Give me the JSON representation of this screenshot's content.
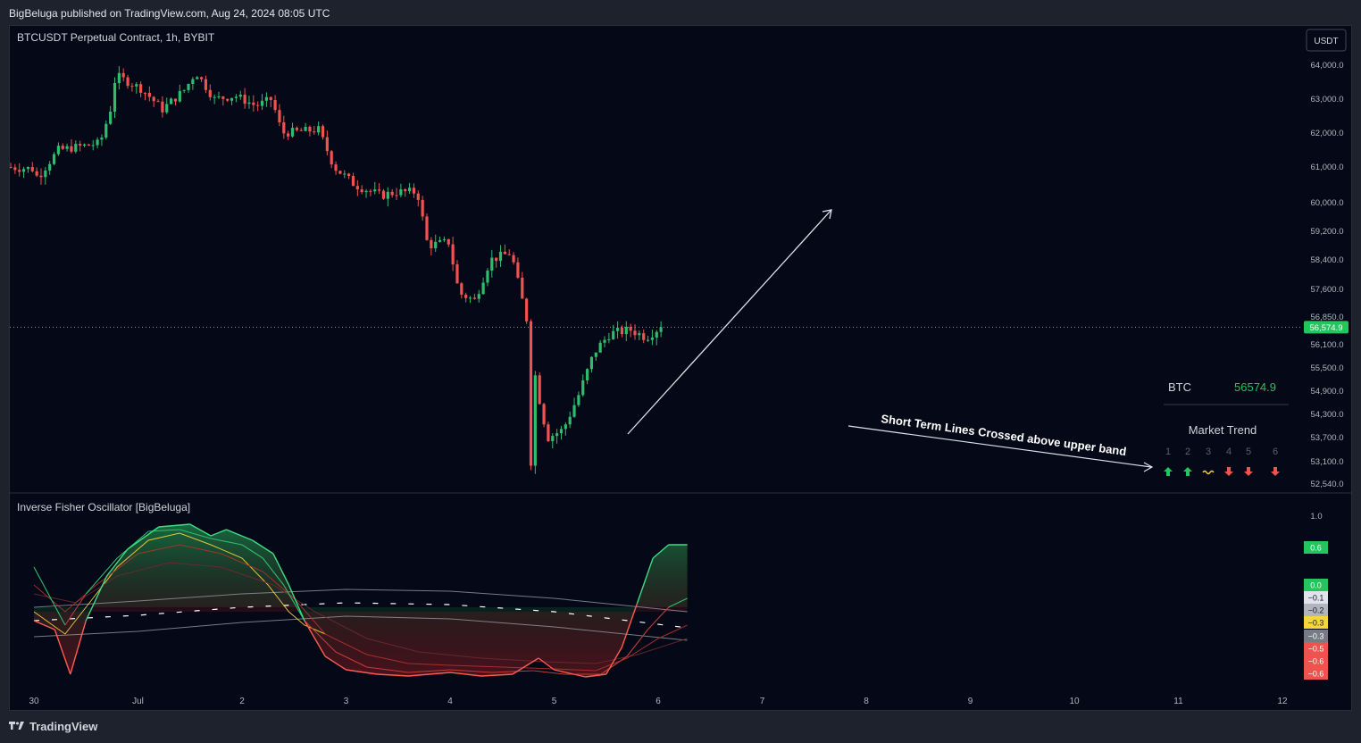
{
  "header": {
    "published_by": "BigBeluga published on TradingView.com, Aug 24, 2024 08:05 UTC"
  },
  "price_pane": {
    "title": "BTCUSDT Perpetual Contract, 1h, BYBIT",
    "currency_button": "USDT",
    "last_price_label": "56,574.9",
    "annotation_text": "Short Term Lines Crossed above upper band"
  },
  "oscillator_pane": {
    "title": "Inverse Fisher Oscillator [BigBeluga]"
  },
  "info_table": {
    "symbol": "BTC",
    "price": "56574.9",
    "market_trend_title": "Market Trend",
    "columns": [
      {
        "num": "1",
        "signal": "up"
      },
      {
        "num": "2",
        "signal": "up"
      },
      {
        "num": "3",
        "signal": "neutral"
      },
      {
        "num": "4",
        "signal": "down"
      },
      {
        "num": "5",
        "signal": "down"
      },
      {
        "num": "6",
        "signal": "down"
      }
    ]
  },
  "footer": {
    "brand": "TradingView"
  },
  "colors": {
    "bull": "#26a69a",
    "bull_bright": "#2ebd6e",
    "bear": "#ef5350",
    "green_line": "#3ddc84",
    "red_line": "#ff5a52",
    "yellow": "#f5d442",
    "badge_green": "#22c55e",
    "background": "#050816"
  },
  "chart_data": [
    {
      "type": "candlestick",
      "title": "BTCUSDT Perpetual Contract, 1h, BYBIT",
      "y_ticks": [
        "64,000.0",
        "63,000.0",
        "62,000.0",
        "61,000.0",
        "60,000.0",
        "59,200.0",
        "58,400.0",
        "57,600.0",
        "56,850.0",
        "56,100.0",
        "55,500.0",
        "54,900.0",
        "54,300.0",
        "53,700.0",
        "53,100.0",
        "52,540.0"
      ],
      "x_ticks": [
        "30",
        "Jul",
        "2",
        "3",
        "4",
        "5",
        "6",
        "7",
        "8",
        "9",
        "10",
        "11",
        "12"
      ],
      "ylim": [
        52540,
        64000
      ],
      "last_price": 56574.9,
      "close_path": [
        {
          "day": 0.0,
          "close": 61000
        },
        {
          "day": 0.25,
          "close": 60950
        },
        {
          "day": 0.3,
          "close": 60700
        },
        {
          "day": 0.5,
          "close": 61500
        },
        {
          "day": 0.9,
          "close": 61700
        },
        {
          "day": 1.0,
          "close": 62700
        },
        {
          "day": 1.05,
          "close": 63700
        },
        {
          "day": 1.3,
          "close": 63300
        },
        {
          "day": 1.5,
          "close": 62700
        },
        {
          "day": 1.72,
          "close": 63300
        },
        {
          "day": 1.82,
          "close": 63800
        },
        {
          "day": 2.0,
          "close": 63000
        },
        {
          "day": 2.2,
          "close": 63100
        },
        {
          "day": 2.4,
          "close": 62800
        },
        {
          "day": 2.55,
          "close": 63000
        },
        {
          "day": 2.65,
          "close": 62000
        },
        {
          "day": 3.0,
          "close": 62100
        },
        {
          "day": 3.15,
          "close": 61000
        },
        {
          "day": 3.35,
          "close": 60500
        },
        {
          "day": 3.6,
          "close": 60200
        },
        {
          "day": 3.75,
          "close": 60300
        },
        {
          "day": 3.95,
          "close": 60300
        },
        {
          "day": 4.05,
          "close": 58800
        },
        {
          "day": 4.25,
          "close": 58900
        },
        {
          "day": 4.35,
          "close": 57500
        },
        {
          "day": 4.5,
          "close": 57300
        },
        {
          "day": 4.65,
          "close": 58400
        },
        {
          "day": 4.85,
          "close": 58600
        },
        {
          "day": 5.0,
          "close": 56800
        },
        {
          "day": 5.1,
          "close": 55000
        },
        {
          "day": 5.2,
          "close": 53700
        },
        {
          "day": 5.35,
          "close": 53900
        },
        {
          "day": 5.5,
          "close": 54800
        },
        {
          "day": 5.65,
          "close": 55900
        },
        {
          "day": 5.8,
          "close": 56400
        },
        {
          "day": 6.0,
          "close": 56500
        },
        {
          "day": 6.15,
          "close": 56300
        },
        {
          "day": 6.28,
          "close": 56574.9
        }
      ]
    },
    {
      "type": "line",
      "title": "Inverse Fisher Oscillator [BigBeluga]",
      "y_ticks": [
        "1.0"
      ],
      "value_labels": [
        {
          "text": "0.6",
          "color": "#22c55e"
        },
        {
          "text": "0.0",
          "color": "#22c55e"
        },
        {
          "text": "−0.1",
          "color": "#e0e3eb"
        },
        {
          "text": "−0.2",
          "color": "#b2b5be"
        },
        {
          "text": "−0.3",
          "color": "#f5d442"
        },
        {
          "text": "−0.3",
          "color": "#787b86"
        },
        {
          "text": "−0.5",
          "color": "#ef5350"
        },
        {
          "text": "−0.6",
          "color": "#ef5350"
        },
        {
          "text": "−0.6",
          "color": "#ef5350"
        }
      ],
      "series": [
        {
          "color": "#3ddc84",
          "values": [
            [
              0.0,
              -0.2
            ],
            [
              0.2,
              -0.3
            ],
            [
              0.35,
              -0.8
            ],
            [
              0.5,
              -0.2
            ],
            [
              0.7,
              0.3
            ],
            [
              0.9,
              0.6
            ],
            [
              1.2,
              0.85
            ],
            [
              1.5,
              0.88
            ],
            [
              1.7,
              0.75
            ],
            [
              1.85,
              0.82
            ],
            [
              2.1,
              0.7
            ],
            [
              2.3,
              0.55
            ],
            [
              2.45,
              0.2
            ],
            [
              2.6,
              -0.2
            ],
            [
              2.8,
              -0.6
            ],
            [
              3.0,
              -0.75
            ],
            [
              3.3,
              -0.8
            ],
            [
              3.6,
              -0.82
            ],
            [
              4.0,
              -0.78
            ],
            [
              4.3,
              -0.82
            ],
            [
              4.6,
              -0.8
            ],
            [
              4.85,
              -0.62
            ],
            [
              5.0,
              -0.75
            ],
            [
              5.3,
              -0.83
            ],
            [
              5.5,
              -0.8
            ],
            [
              5.65,
              -0.5
            ],
            [
              5.8,
              0.0
            ],
            [
              5.95,
              0.5
            ],
            [
              6.1,
              0.65
            ],
            [
              6.28,
              0.65
            ]
          ]
        },
        {
          "color": "#2ebd6e",
          "values": [
            [
              0.0,
              0.4
            ],
            [
              0.3,
              -0.25
            ],
            [
              0.5,
              0.1
            ],
            [
              0.8,
              0.5
            ],
            [
              1.1,
              0.8
            ],
            [
              1.4,
              0.82
            ],
            [
              1.7,
              0.72
            ],
            [
              2.0,
              0.65
            ],
            [
              2.2,
              0.5
            ],
            [
              2.4,
              0.2
            ],
            [
              2.6,
              -0.2
            ],
            [
              2.9,
              -0.55
            ],
            [
              3.2,
              -0.72
            ],
            [
              3.6,
              -0.78
            ],
            [
              4.0,
              -0.75
            ],
            [
              4.4,
              -0.78
            ],
            [
              4.8,
              -0.76
            ],
            [
              5.1,
              -0.8
            ],
            [
              5.45,
              -0.8
            ],
            [
              5.7,
              -0.6
            ],
            [
              5.9,
              -0.3
            ],
            [
              6.1,
              -0.05
            ],
            [
              6.28,
              0.05
            ]
          ]
        },
        {
          "color": "#b0322e",
          "values": [
            [
              0.0,
              0.2
            ],
            [
              0.3,
              -0.1
            ],
            [
              0.6,
              0.2
            ],
            [
              1.0,
              0.55
            ],
            [
              1.4,
              0.65
            ],
            [
              1.8,
              0.55
            ],
            [
              2.2,
              0.35
            ],
            [
              2.5,
              0.05
            ],
            [
              2.8,
              -0.35
            ],
            [
              3.2,
              -0.58
            ],
            [
              3.6,
              -0.68
            ],
            [
              4.0,
              -0.7
            ],
            [
              4.5,
              -0.72
            ],
            [
              5.0,
              -0.74
            ],
            [
              5.4,
              -0.76
            ],
            [
              5.7,
              -0.62
            ],
            [
              6.0,
              -0.4
            ],
            [
              6.28,
              -0.25
            ]
          ]
        },
        {
          "color": "#6b2a2e",
          "values": [
            [
              0.0,
              0.1
            ],
            [
              0.4,
              0.0
            ],
            [
              0.8,
              0.3
            ],
            [
              1.3,
              0.45
            ],
            [
              1.8,
              0.4
            ],
            [
              2.3,
              0.2
            ],
            [
              2.7,
              -0.1
            ],
            [
              3.2,
              -0.4
            ],
            [
              3.7,
              -0.55
            ],
            [
              4.3,
              -0.62
            ],
            [
              4.9,
              -0.66
            ],
            [
              5.4,
              -0.68
            ],
            [
              5.8,
              -0.58
            ],
            [
              6.28,
              -0.4
            ]
          ]
        },
        {
          "color": "#f5d442",
          "values": [
            [
              0.0,
              -0.1
            ],
            [
              0.3,
              -0.35
            ],
            [
              0.5,
              -0.05
            ],
            [
              0.8,
              0.4
            ],
            [
              1.1,
              0.7
            ],
            [
              1.4,
              0.78
            ],
            [
              1.7,
              0.65
            ],
            [
              2.0,
              0.5
            ],
            [
              2.25,
              0.2
            ],
            [
              2.45,
              -0.1
            ],
            [
              2.6,
              -0.25
            ],
            [
              2.8,
              -0.35
            ]
          ]
        }
      ],
      "bands": [
        {
          "name": "upper",
          "values": [
            [
              0.0,
              -0.05
            ],
            [
              1.0,
              0.02
            ],
            [
              2.0,
              0.1
            ],
            [
              3.0,
              0.15
            ],
            [
              4.0,
              0.13
            ],
            [
              5.0,
              0.05
            ],
            [
              6.28,
              -0.1
            ]
          ]
        },
        {
          "name": "middle",
          "values": [
            [
              0.0,
              -0.2
            ],
            [
              1.0,
              -0.14
            ],
            [
              2.0,
              -0.05
            ],
            [
              3.0,
              0.0
            ],
            [
              4.0,
              -0.02
            ],
            [
              5.0,
              -0.1
            ],
            [
              6.28,
              -0.28
            ]
          ]
        },
        {
          "name": "lower",
          "values": [
            [
              0.0,
              -0.38
            ],
            [
              1.0,
              -0.32
            ],
            [
              2.0,
              -0.22
            ],
            [
              3.0,
              -0.15
            ],
            [
              4.0,
              -0.18
            ],
            [
              5.0,
              -0.27
            ],
            [
              6.28,
              -0.42
            ]
          ]
        }
      ]
    }
  ]
}
